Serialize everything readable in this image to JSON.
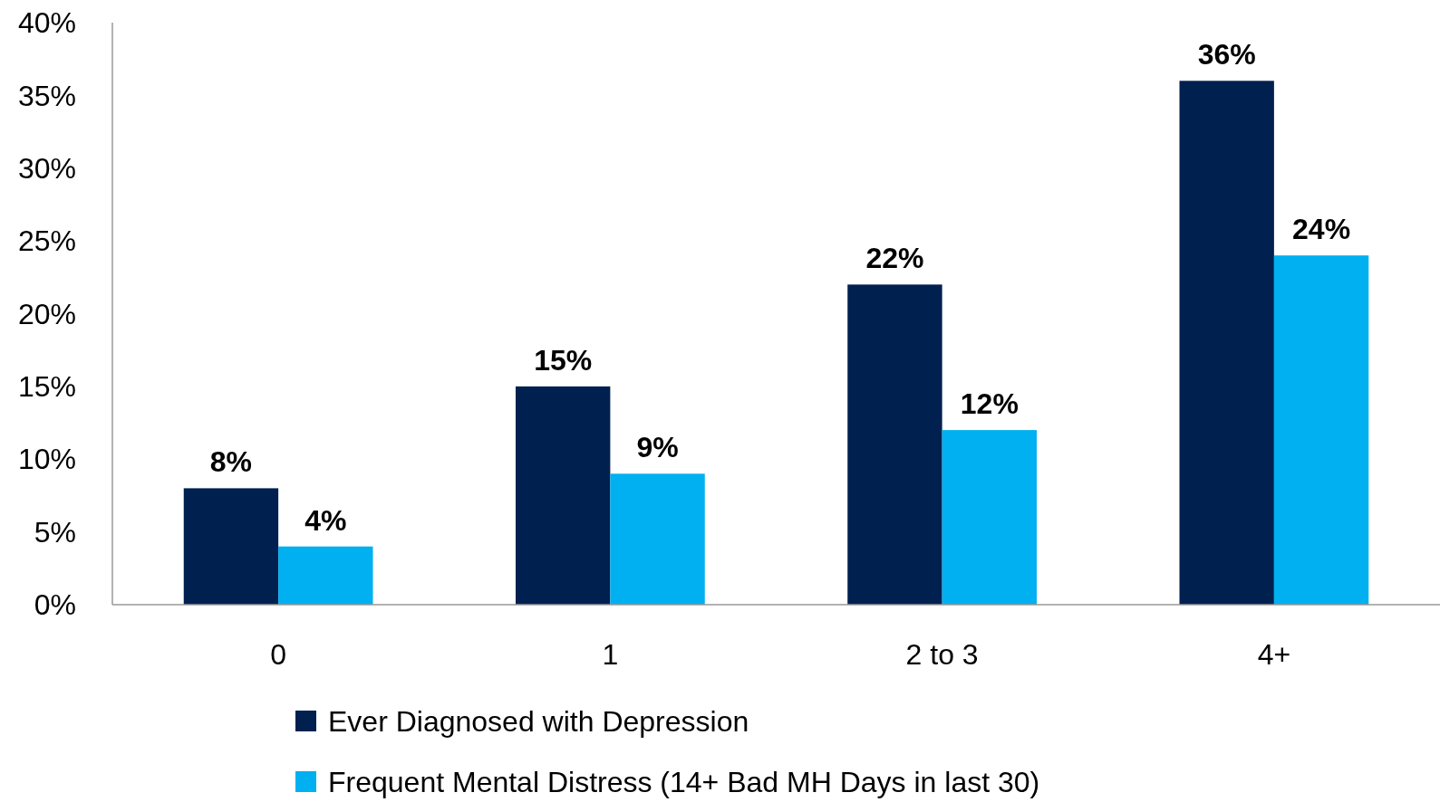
{
  "chart_data": {
    "type": "bar",
    "categories": [
      "0",
      "1",
      "2 to 3",
      "4+"
    ],
    "series": [
      {
        "name": "Ever Diagnosed with Depression",
        "color": "#002050",
        "values": [
          8,
          15,
          22,
          36
        ],
        "value_labels": [
          "8%",
          "15%",
          "22%",
          "36%"
        ]
      },
      {
        "name": "Frequent Mental Distress (14+ Bad MH Days in last 30)",
        "color": "#00b0f0",
        "values": [
          4,
          9,
          12,
          24
        ],
        "value_labels": [
          "4%",
          "9%",
          "12%",
          "24%"
        ]
      }
    ],
    "ylim": [
      0,
      40
    ],
    "yticks": [
      {
        "value": 0,
        "label": "0%"
      },
      {
        "value": 5,
        "label": "5%"
      },
      {
        "value": 10,
        "label": "10%"
      },
      {
        "value": 15,
        "label": "15%"
      },
      {
        "value": 20,
        "label": "20%"
      },
      {
        "value": 25,
        "label": "25%"
      },
      {
        "value": 30,
        "label": "30%"
      },
      {
        "value": 35,
        "label": "35%"
      },
      {
        "value": 40,
        "label": "40%"
      }
    ],
    "grid": false,
    "legend": "bottom"
  }
}
